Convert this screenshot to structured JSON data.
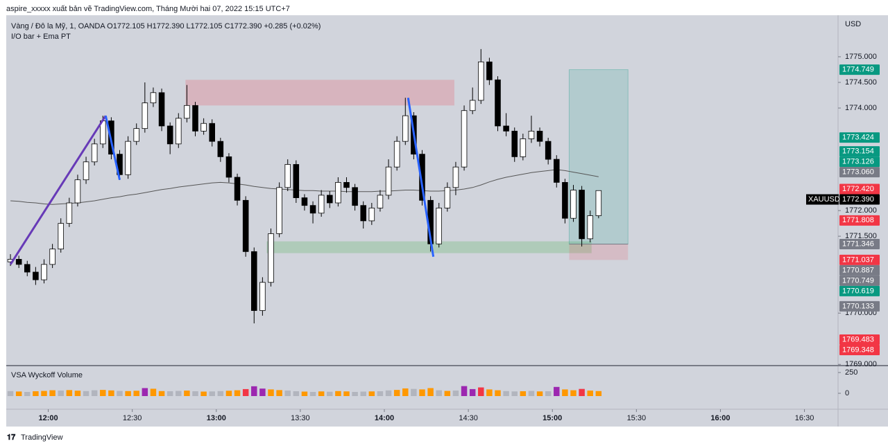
{
  "chart_data": {
    "type": "candlestick",
    "title": "aspire_xxxxx xuất bản vẽ TradingView.com, Tháng Mười hai 07, 2022 15:15 UTC+7",
    "subtitle": "Vàng / Đô la Mỹ, 1, OANDA  O1772.105 H1772.390 L1772.105 C1772.390 +0.285 (+0.02%)",
    "indicator": "I/O bar + Ema PT",
    "currency": "USD",
    "footer": "TradingView",
    "x": [
      "11:45",
      "11:48",
      "11:51",
      "11:54",
      "11:57",
      "12:00",
      "12:03",
      "12:06",
      "12:09",
      "12:12",
      "12:15",
      "12:18",
      "12:21",
      "12:24",
      "12:27",
      "12:30",
      "12:33",
      "12:36",
      "12:39",
      "12:42",
      "12:45",
      "12:48",
      "12:51",
      "12:54",
      "12:57",
      "13:00",
      "13:03",
      "13:06",
      "13:09",
      "13:12",
      "13:15",
      "13:18",
      "13:21",
      "13:24",
      "13:27",
      "13:30",
      "13:33",
      "13:36",
      "13:39",
      "13:42",
      "13:45",
      "13:48",
      "13:51",
      "13:54",
      "13:57",
      "14:00",
      "14:03",
      "14:06",
      "14:09",
      "14:12",
      "14:15",
      "14:18",
      "14:21",
      "14:24",
      "14:27",
      "14:30",
      "14:33",
      "14:36",
      "14:39",
      "14:42",
      "14:45",
      "14:48",
      "14:51",
      "14:54",
      "14:57",
      "15:00",
      "15:03",
      "15:06",
      "15:09",
      "15:12",
      "15:15"
    ],
    "ohlc": [
      [
        1771.0,
        1771.15,
        1770.92,
        1771.05
      ],
      [
        1771.05,
        1771.12,
        1770.88,
        1770.95
      ],
      [
        1770.95,
        1771.02,
        1770.72,
        1770.8
      ],
      [
        1770.8,
        1770.9,
        1770.55,
        1770.65
      ],
      [
        1770.65,
        1771.05,
        1770.58,
        1770.95
      ],
      [
        1770.95,
        1771.35,
        1770.88,
        1771.25
      ],
      [
        1771.25,
        1771.85,
        1771.18,
        1771.75
      ],
      [
        1771.75,
        1772.25,
        1771.68,
        1772.15
      ],
      [
        1772.15,
        1772.7,
        1772.08,
        1772.6
      ],
      [
        1772.6,
        1773.05,
        1772.52,
        1772.95
      ],
      [
        1772.95,
        1773.4,
        1772.88,
        1773.3
      ],
      [
        1773.3,
        1773.85,
        1773.22,
        1773.75
      ],
      [
        1773.75,
        1773.82,
        1773.0,
        1773.1
      ],
      [
        1773.1,
        1773.18,
        1772.6,
        1772.7
      ],
      [
        1772.7,
        1773.45,
        1772.62,
        1773.35
      ],
      [
        1773.35,
        1773.7,
        1773.28,
        1773.6
      ],
      [
        1773.6,
        1774.5,
        1773.52,
        1774.1
      ],
      [
        1774.1,
        1774.4,
        1774.02,
        1774.3
      ],
      [
        1774.3,
        1774.38,
        1773.55,
        1773.65
      ],
      [
        1773.65,
        1773.72,
        1773.1,
        1773.3
      ],
      [
        1773.3,
        1773.9,
        1773.22,
        1773.8
      ],
      [
        1773.8,
        1774.45,
        1773.72,
        1774.05
      ],
      [
        1774.05,
        1774.12,
        1773.45,
        1773.55
      ],
      [
        1773.55,
        1773.8,
        1773.48,
        1773.7
      ],
      [
        1773.7,
        1773.78,
        1773.25,
        1773.35
      ],
      [
        1773.35,
        1773.42,
        1772.95,
        1773.05
      ],
      [
        1773.05,
        1773.12,
        1772.55,
        1772.65
      ],
      [
        1772.65,
        1772.72,
        1772.1,
        1772.2
      ],
      [
        1772.2,
        1772.28,
        1771.1,
        1771.2
      ],
      [
        1771.2,
        1771.28,
        1769.8,
        1770.05
      ],
      [
        1770.05,
        1770.7,
        1769.95,
        1770.6
      ],
      [
        1770.6,
        1771.65,
        1770.52,
        1771.55
      ],
      [
        1771.55,
        1772.55,
        1771.48,
        1772.45
      ],
      [
        1772.45,
        1773.0,
        1772.38,
        1772.9
      ],
      [
        1772.9,
        1772.98,
        1772.15,
        1772.25
      ],
      [
        1772.25,
        1772.32,
        1772.0,
        1772.1
      ],
      [
        1772.1,
        1772.18,
        1771.75,
        1771.95
      ],
      [
        1771.95,
        1772.4,
        1771.88,
        1772.3
      ],
      [
        1772.3,
        1772.38,
        1772.05,
        1772.15
      ],
      [
        1772.15,
        1772.65,
        1772.08,
        1772.55
      ],
      [
        1772.55,
        1772.65,
        1772.35,
        1772.45
      ],
      [
        1772.45,
        1772.52,
        1772.0,
        1772.1
      ],
      [
        1772.1,
        1772.18,
        1771.65,
        1771.8
      ],
      [
        1771.8,
        1772.15,
        1771.72,
        1772.05
      ],
      [
        1772.05,
        1772.4,
        1771.98,
        1772.3
      ],
      [
        1772.3,
        1773.0,
        1772.22,
        1772.85
      ],
      [
        1772.85,
        1773.45,
        1772.78,
        1773.35
      ],
      [
        1773.35,
        1774.2,
        1773.28,
        1773.85
      ],
      [
        1773.85,
        1773.92,
        1773.0,
        1773.1
      ],
      [
        1773.1,
        1773.18,
        1772.1,
        1772.2
      ],
      [
        1772.2,
        1772.28,
        1771.2,
        1771.35
      ],
      [
        1771.35,
        1772.15,
        1771.28,
        1772.05
      ],
      [
        1772.05,
        1772.55,
        1771.98,
        1772.45
      ],
      [
        1772.45,
        1772.95,
        1772.3,
        1772.85
      ],
      [
        1772.85,
        1774.05,
        1772.78,
        1773.95
      ],
      [
        1773.95,
        1774.4,
        1773.88,
        1774.15
      ],
      [
        1774.15,
        1775.15,
        1774.08,
        1774.9
      ],
      [
        1774.9,
        1774.98,
        1774.45,
        1774.55
      ],
      [
        1774.55,
        1774.62,
        1773.55,
        1773.65
      ],
      [
        1773.65,
        1773.9,
        1773.45,
        1773.55
      ],
      [
        1773.55,
        1773.62,
        1772.95,
        1773.05
      ],
      [
        1773.05,
        1773.5,
        1772.98,
        1773.4
      ],
      [
        1773.4,
        1773.85,
        1773.32,
        1773.55
      ],
      [
        1773.55,
        1773.62,
        1773.25,
        1773.35
      ],
      [
        1773.35,
        1773.42,
        1772.9,
        1773.0
      ],
      [
        1773.0,
        1773.08,
        1772.45,
        1772.55
      ],
      [
        1772.55,
        1772.62,
        1771.75,
        1771.85
      ],
      [
        1771.85,
        1772.5,
        1771.78,
        1772.4
      ],
      [
        1772.4,
        1772.48,
        1771.3,
        1771.45
      ],
      [
        1771.45,
        1772.0,
        1771.38,
        1771.9
      ],
      [
        1771.9,
        1772.39,
        1771.85,
        1772.39
      ]
    ],
    "up_color": "#ffffff",
    "down_color": "#000000",
    "ema": {
      "color": "#555555",
      "values": [
        1772.19,
        1772.18,
        1772.16,
        1772.15,
        1772.13,
        1772.12,
        1772.13,
        1772.14,
        1772.15,
        1772.17,
        1772.19,
        1772.22,
        1772.25,
        1772.27,
        1772.3,
        1772.32,
        1772.35,
        1772.38,
        1772.41,
        1772.43,
        1772.46,
        1772.48,
        1772.5,
        1772.52,
        1772.54,
        1772.55,
        1772.54,
        1772.52,
        1772.5,
        1772.47,
        1772.45,
        1772.43,
        1772.42,
        1772.41,
        1772.4,
        1772.39,
        1772.39,
        1772.38,
        1772.38,
        1772.38,
        1772.37,
        1772.37,
        1772.37,
        1772.37,
        1772.38,
        1772.38,
        1772.39,
        1772.4,
        1772.4,
        1772.39,
        1772.38,
        1772.38,
        1772.39,
        1772.4,
        1772.42,
        1772.45,
        1772.5,
        1772.56,
        1772.61,
        1772.65,
        1772.68,
        1772.71,
        1772.74,
        1772.76,
        1772.78,
        1772.8,
        1772.78,
        1772.75,
        1772.72,
        1772.69,
        1772.66
      ]
    },
    "xlim": [
      "11:45",
      "16:42"
    ],
    "xticks": [
      "12:00",
      "12:30",
      "13:00",
      "13:30",
      "14:00",
      "14:30",
      "15:00",
      "15:30",
      "16:00",
      "16:30"
    ],
    "ylim": [
      1768.99,
      1775.81
    ],
    "yticks": [
      {
        "value": 1769,
        "label": "1769.000"
      },
      {
        "value": 1770,
        "label": "1770.000"
      },
      {
        "value": 1771.5,
        "label": "1771.500"
      },
      {
        "value": 1772,
        "label": "1772.000"
      },
      {
        "value": 1774,
        "label": "1774.000"
      },
      {
        "value": 1774.5,
        "label": "1774.500"
      },
      {
        "value": 1775,
        "label": "1775.000"
      }
    ],
    "price_labels": [
      {
        "value": 1774.749,
        "label": "1774.749",
        "color": "#089981"
      },
      {
        "value": 1773.424,
        "label": "1773.424",
        "color": "#089981"
      },
      {
        "value": 1773.154,
        "label": "1773.154",
        "color": "#089981"
      },
      {
        "value": 1773.126,
        "label": "1773.126",
        "color": "#089981"
      },
      {
        "value": 1773.06,
        "label": "1773.060",
        "color": "#787b86"
      },
      {
        "value": 1772.42,
        "label": "1772.420",
        "color": "#f23645"
      },
      {
        "value": 1772.39,
        "label": "1772.390",
        "color": "#000000",
        "name": "XAUUSD"
      },
      {
        "value": 1771.808,
        "label": "1771.808",
        "color": "#f23645"
      },
      {
        "value": 1771.346,
        "label": "1771.346",
        "color": "#787b86"
      },
      {
        "value": 1771.037,
        "label": "1771.037",
        "color": "#f23645"
      },
      {
        "value": 1770.887,
        "label": "1770.887",
        "color": "#787b86"
      },
      {
        "value": 1770.749,
        "label": "1770.749",
        "color": "#787b86"
      },
      {
        "value": 1770.619,
        "label": "1770.619",
        "color": "#089981"
      },
      {
        "value": 1770.133,
        "label": "1770.133",
        "color": "#787b86"
      },
      {
        "value": 1769.483,
        "label": "1769.483",
        "color": "#f23645"
      },
      {
        "value": 1769.348,
        "label": "1769.348",
        "color": "#f23645"
      }
    ],
    "zones": [
      {
        "from": "12:49",
        "to": "14:25",
        "top": 1774.55,
        "bottom": 1774.05,
        "color": "rgba(242,54,69,0.2)"
      },
      {
        "from": "13:18",
        "to": "15:14",
        "top": 1771.4,
        "bottom": 1771.17,
        "color": "rgba(76,175,80,0.25)"
      }
    ],
    "position": {
      "from": "15:06",
      "to": "15:27",
      "target": 1774.749,
      "entry": 1771.346,
      "stop": 1771.037,
      "profit_color": "rgba(8,153,129,0.15)",
      "loss_color": "rgba(242,54,69,0.15)"
    },
    "trendlines": [
      {
        "from": "11:45",
        "from_price": 1770.95,
        "to": "12:19",
        "to_price": 1773.85,
        "color": "#673ab7"
      },
      {
        "from": "12:19",
        "from_price": 1773.85,
        "to": "12:24",
        "to_price": 1772.6,
        "color": "#2962ff"
      },
      {
        "from": "14:07",
        "from_price": 1774.2,
        "to": "14:16",
        "to_price": 1771.1,
        "color": "#2962ff"
      }
    ],
    "volume": {
      "title": "VSA Wyckoff Volume",
      "ylim": [
        0,
        250
      ],
      "yticks": [
        0,
        250
      ],
      "values": [
        60,
        55,
        50,
        58,
        62,
        70,
        66,
        72,
        65,
        60,
        70,
        74,
        68,
        62,
        60,
        64,
        96,
        88,
        60,
        58,
        62,
        66,
        58,
        54,
        56,
        60,
        64,
        70,
        84,
        118,
        90,
        80,
        72,
        66,
        58,
        54,
        50,
        56,
        52,
        60,
        56,
        50,
        54,
        56,
        58,
        68,
        74,
        92,
        86,
        80,
        96,
        70,
        62,
        66,
        120,
        84,
        104,
        80,
        70,
        60,
        56,
        58,
        62,
        56,
        58,
        110,
        80,
        70,
        86,
        66,
        60
      ],
      "colors": [
        "#b2b5be",
        "#ff9800",
        "#b2b5be",
        "#ff9800",
        "#ff9800",
        "#ff9800",
        "#b2b5be",
        "#ff9800",
        "#ff9800",
        "#b2b5be",
        "#b2b5be",
        "#ff9800",
        "#ff9800",
        "#b2b5be",
        "#ff9800",
        "#ff9800",
        "#9c27b0",
        "#ff9800",
        "#ff9800",
        "#b2b5be",
        "#b2b5be",
        "#ff9800",
        "#b2b5be",
        "#ff9800",
        "#b2b5be",
        "#b2b5be",
        "#ff9800",
        "#ff9800",
        "#f23645",
        "#9c27b0",
        "#9c27b0",
        "#ff9800",
        "#ff9800",
        "#b2b5be",
        "#b2b5be",
        "#ff9800",
        "#b2b5be",
        "#ff9800",
        "#b2b5be",
        "#ff9800",
        "#ff9800",
        "#b2b5be",
        "#b2b5be",
        "#ff9800",
        "#b2b5be",
        "#b2b5be",
        "#ff9800",
        "#ff9800",
        "#b2b5be",
        "#ff9800",
        "#ff9800",
        "#b2b5be",
        "#ff9800",
        "#b2b5be",
        "#9c27b0",
        "#9c27b0",
        "#f23645",
        "#ff9800",
        "#ff9800",
        "#b2b5be",
        "#b2b5be",
        "#ff9800",
        "#b2b5be",
        "#ff9800",
        "#b2b5be",
        "#9c27b0",
        "#ff9800",
        "#ff9800",
        "#f23645",
        "#ff9800",
        "#ff9800"
      ]
    }
  }
}
